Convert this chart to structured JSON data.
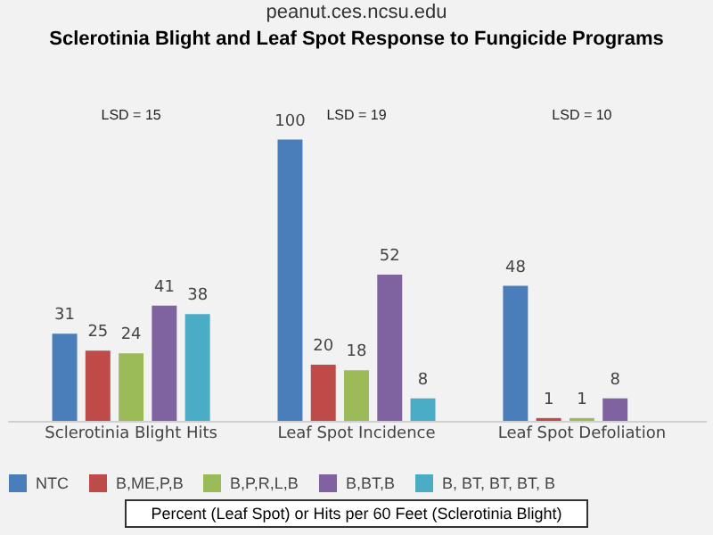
{
  "chart_data": {
    "type": "bar",
    "title": "Sclerotinia Blight and Leaf Spot Response to Fungicide Programs",
    "categories": [
      "Sclerotinia Blight Hits",
      "Leaf Spot Incidence",
      "Leaf Spot Defoliation"
    ],
    "series": [
      {
        "name": "NTC",
        "color": "#4a7ebb",
        "values": [
          31,
          100,
          48
        ]
      },
      {
        "name": "B,ME,P,B",
        "color": "#be4b48",
        "values": [
          25,
          20,
          1
        ]
      },
      {
        "name": "B,P,R,L,B",
        "color": "#9bbb59",
        "values": [
          24,
          18,
          1
        ]
      },
      {
        "name": "B,BT,B",
        "color": "#7f63a1",
        "values": [
          41,
          52,
          8
        ]
      },
      {
        "name": "B, BT, BT, BT, B",
        "color": "#4bacc6",
        "values": [
          38,
          8,
          null
        ]
      }
    ],
    "data_labels": true,
    "legend": "bottom",
    "grid": false,
    "annotations": [
      "peanut.ces.ncsu.edu",
      "LSD = 15",
      "LSD = 19",
      "LSD = 10",
      "Percent (Leaf Spot) or Hits per 60 Feet (Sclerotinia Blight)"
    ]
  }
}
